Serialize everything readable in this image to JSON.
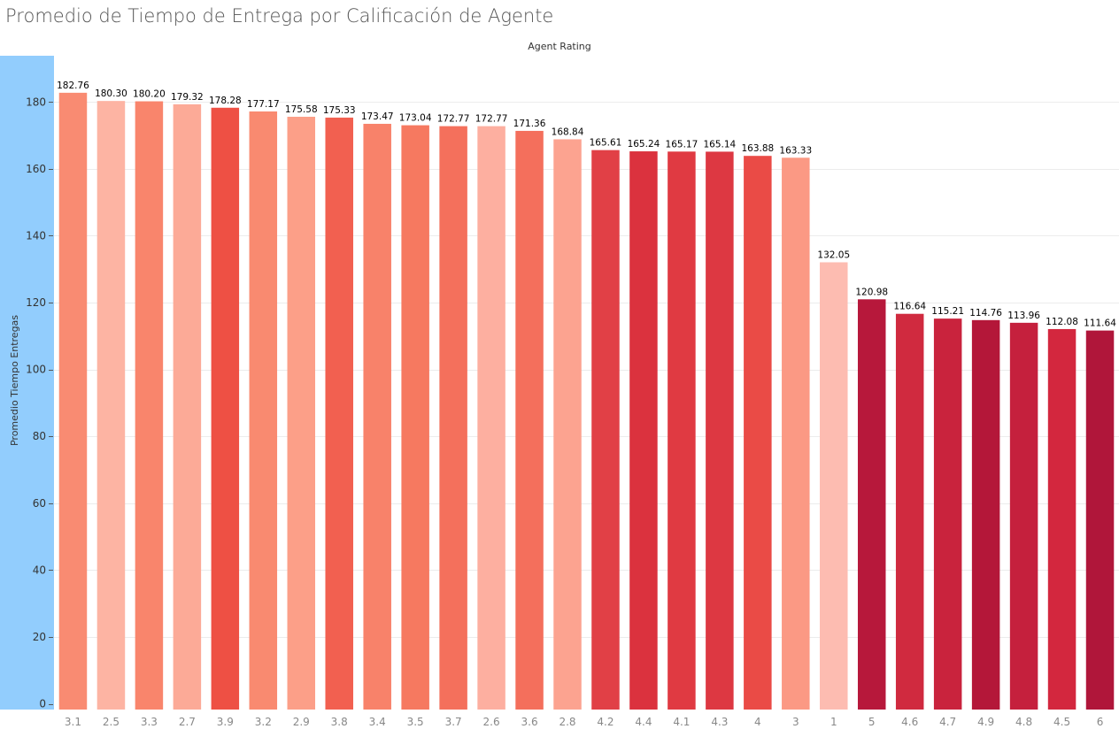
{
  "chart_data": {
    "type": "bar",
    "title": "Promedio de Tiempo de Entrega por Calificación de Agente",
    "xlabel": "Agent Rating",
    "ylabel": "Promedio Tiempo Entregas",
    "ylim": [
      0,
      190
    ],
    "yticks": [
      0,
      20,
      40,
      60,
      80,
      100,
      120,
      140,
      160,
      180
    ],
    "grid": true,
    "legend": "none",
    "categories": [
      "3.1",
      "2.5",
      "3.3",
      "2.7",
      "3.9",
      "3.2",
      "2.9",
      "3.8",
      "3.4",
      "3.5",
      "3.7",
      "2.6",
      "3.6",
      "2.8",
      "4.2",
      "4.4",
      "4.1",
      "4.3",
      "4",
      "3",
      "1",
      "5",
      "4.6",
      "4.7",
      "4.9",
      "4.8",
      "4.5",
      "6"
    ],
    "values": [
      182.76,
      180.3,
      180.2,
      179.32,
      178.28,
      177.17,
      175.58,
      175.33,
      173.47,
      173.04,
      172.77,
      172.77,
      171.36,
      168.84,
      165.61,
      165.24,
      165.17,
      165.14,
      163.88,
      163.33,
      132.05,
      120.98,
      116.64,
      115.21,
      114.76,
      113.96,
      112.08,
      111.64
    ],
    "value_labels": [
      "182.76",
      "180.30",
      "180.20",
      "179.32",
      "178.28",
      "177.17",
      "175.58",
      "175.33",
      "173.47",
      "173.04",
      "172.77",
      "172.77",
      "171.36",
      "168.84",
      "165.61",
      "165.24",
      "165.17",
      "165.14",
      "163.88",
      "163.33",
      "132.05",
      "120.98",
      "116.64",
      "115.21",
      "114.76",
      "113.96",
      "112.08",
      "111.64"
    ],
    "colors": [
      "#f98b72",
      "#fdb4a3",
      "#f9856c",
      "#fcaa97",
      "#ee5044",
      "#f98a70",
      "#fc9f88",
      "#f26050",
      "#f8826a",
      "#f67960",
      "#f4705c",
      "#fdafa0",
      "#f46f5c",
      "#fca390",
      "#e14046",
      "#db323e",
      "#e03a42",
      "#dd3842",
      "#ea4b46",
      "#fb9984",
      "#fdbcb1",
      "#b7183b",
      "#d02a3f",
      "#c9233d",
      "#b41739",
      "#c5203d",
      "#d3273e",
      "#b0163a"
    ],
    "axis_band_color": "#92cdfd",
    "grid_color": "#ececec"
  }
}
